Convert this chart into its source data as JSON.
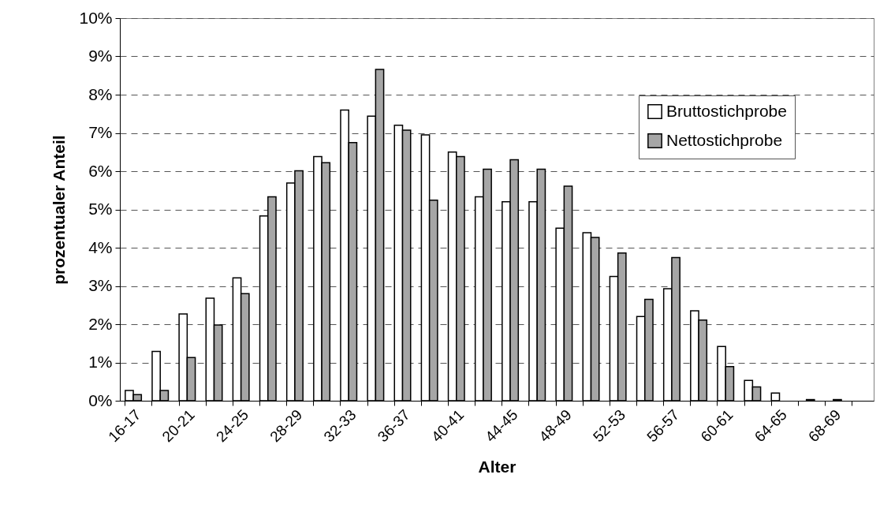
{
  "chart_data": {
    "type": "bar",
    "xlabel": "Alter",
    "ylabel": "prozentualer Anteil",
    "categories": [
      "16-17",
      null,
      "20-21",
      null,
      "24-25",
      null,
      "28-29",
      null,
      "32-33",
      null,
      "36-37",
      null,
      "40-41",
      null,
      "44-45",
      null,
      "48-49",
      null,
      "52-53",
      null,
      "56-57",
      null,
      "60-61",
      null,
      "64-65",
      null,
      "68-69",
      null
    ],
    "series": [
      {
        "name": "Bruttostichprobe",
        "color": "#ffffff",
        "values": [
          0.27,
          1.29,
          2.27,
          2.68,
          3.21,
          4.83,
          5.69,
          6.38,
          7.6,
          7.44,
          7.2,
          6.95,
          6.5,
          5.33,
          5.2,
          5.2,
          4.51,
          4.39,
          3.25,
          2.2,
          2.93,
          2.35,
          1.42,
          0.53,
          0.2,
          null,
          null,
          null
        ]
      },
      {
        "name": "Nettostichprobe",
        "color": "#a6a6a6",
        "values": [
          0.16,
          0.27,
          1.13,
          1.98,
          2.8,
          5.33,
          6.01,
          6.22,
          6.75,
          8.66,
          7.07,
          5.24,
          6.38,
          6.05,
          6.3,
          6.05,
          5.61,
          4.27,
          3.86,
          2.65,
          3.74,
          2.11,
          0.89,
          0.36,
          null,
          0.03,
          0.03,
          null
        ]
      }
    ],
    "ylim": [
      0,
      10
    ],
    "yticks": [
      {
        "value": 0,
        "label": "0%"
      },
      {
        "value": 1,
        "label": "1%"
      },
      {
        "value": 2,
        "label": "2%"
      },
      {
        "value": 3,
        "label": "3%"
      },
      {
        "value": 4,
        "label": "4%"
      },
      {
        "value": 5,
        "label": "5%"
      },
      {
        "value": 6,
        "label": "6%"
      },
      {
        "value": 7,
        "label": "7%"
      },
      {
        "value": 8,
        "label": "8%"
      },
      {
        "value": 9,
        "label": "9%"
      },
      {
        "value": 10,
        "label": "10%"
      }
    ],
    "grid": "y",
    "legend": "top right"
  }
}
